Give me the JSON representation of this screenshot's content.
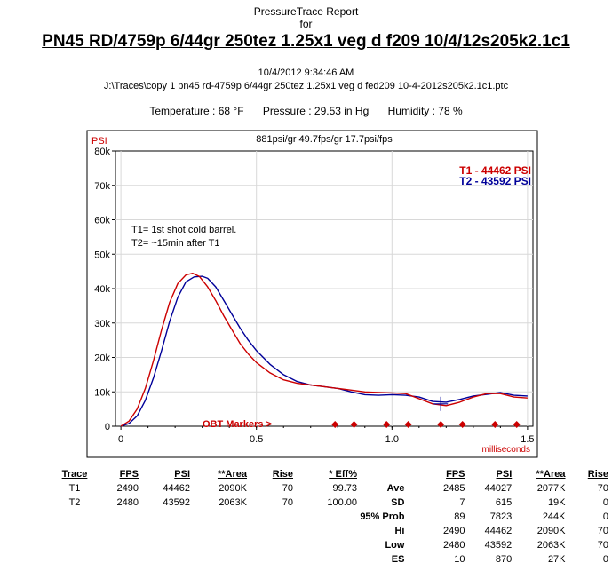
{
  "header": {
    "title": "PressureTrace Report",
    "for_label": "for",
    "main": "PN45 RD/4759p 6/44gr 250tez 1.25x1 veg d f209 10/4/12s205k2.1c1",
    "date": "10/4/2012 9:34:46 AM",
    "path": "J:\\Traces\\copy 1 pn45 rd-4759p 6/44gr 250tez 1.25x1 veg d fed209 10-4-2012s205k2.1c1.ptc"
  },
  "conditions": {
    "temperature": "Temperature : 68 °F",
    "pressure": "Pressure : 29.53 in Hg",
    "humidity": "Humidity : 78 %"
  },
  "chart_data": {
    "type": "line",
    "subtitle": "881psi/gr   49.7fps/gr   17.7psi/fps",
    "ylabel": "PSI",
    "xlabel": "milliseconds",
    "xlim": [
      -0.02,
      1.52
    ],
    "ylim": [
      0,
      80000
    ],
    "x_ticks": [
      {
        "v": 0,
        "t": "0"
      },
      {
        "v": 0.5,
        "t": "0.5"
      },
      {
        "v": 1.0,
        "t": "1.0"
      },
      {
        "v": 1.5,
        "t": "1.5"
      }
    ],
    "y_ticks": [
      {
        "v": 0,
        "t": "0"
      },
      {
        "v": 10000,
        "t": "10k"
      },
      {
        "v": 20000,
        "t": "20k"
      },
      {
        "v": 30000,
        "t": "30k"
      },
      {
        "v": 40000,
        "t": "40k"
      },
      {
        "v": 50000,
        "t": "50k"
      },
      {
        "v": 60000,
        "t": "60k"
      },
      {
        "v": 70000,
        "t": "70k"
      },
      {
        "v": 80000,
        "t": "80k"
      }
    ],
    "annotation_lines": [
      "T1= 1st shot cold barrel.",
      "T2= ~15min after T1"
    ],
    "obt_label": "OBT Markers >",
    "obt_markers": [
      0.79,
      0.86,
      0.98,
      1.06,
      1.18,
      1.26,
      1.38,
      1.46
    ],
    "legend": [
      {
        "name": "T1 -  44462 PSI",
        "color": "#cc0000"
      },
      {
        "name": "T2 -  43592 PSI",
        "color": "#000099"
      }
    ],
    "series": [
      {
        "name": "T1",
        "color": "#cc0000",
        "x": [
          0,
          0.03,
          0.06,
          0.09,
          0.12,
          0.15,
          0.18,
          0.21,
          0.24,
          0.265,
          0.29,
          0.32,
          0.35,
          0.38,
          0.41,
          0.44,
          0.47,
          0.5,
          0.55,
          0.6,
          0.65,
          0.7,
          0.75,
          0.8,
          0.85,
          0.9,
          0.95,
          1.0,
          1.05,
          1.1,
          1.15,
          1.2,
          1.25,
          1.3,
          1.35,
          1.4,
          1.45,
          1.5
        ],
        "y": [
          0,
          1500,
          5000,
          11000,
          19000,
          28000,
          36000,
          41500,
          44000,
          44462,
          43500,
          40500,
          36500,
          32000,
          28000,
          24000,
          21000,
          18500,
          15500,
          13500,
          12500,
          12000,
          11500,
          11000,
          10500,
          10000,
          9800,
          9700,
          9500,
          8000,
          6500,
          6000,
          7000,
          8500,
          9500,
          9500,
          8500,
          8200
        ]
      },
      {
        "name": "T2",
        "color": "#000099",
        "x": [
          0,
          0.03,
          0.06,
          0.09,
          0.12,
          0.15,
          0.18,
          0.21,
          0.24,
          0.27,
          0.3,
          0.32,
          0.35,
          0.38,
          0.41,
          0.44,
          0.47,
          0.5,
          0.55,
          0.6,
          0.65,
          0.7,
          0.75,
          0.8,
          0.85,
          0.9,
          0.95,
          1.0,
          1.05,
          1.1,
          1.15,
          1.2,
          1.25,
          1.3,
          1.35,
          1.4,
          1.45,
          1.5
        ],
        "y": [
          0,
          800,
          3000,
          7500,
          14000,
          22000,
          30500,
          37500,
          42000,
          43400,
          43592,
          43000,
          40500,
          36500,
          32500,
          28500,
          25000,
          22000,
          18000,
          15000,
          13000,
          12000,
          11500,
          11000,
          10000,
          9200,
          9000,
          9200,
          9000,
          8500,
          7200,
          7000,
          7800,
          8800,
          9300,
          9800,
          9000,
          8800
        ]
      }
    ]
  },
  "left_table": {
    "headers": [
      "Trace",
      "FPS",
      "PSI",
      "**Area",
      "Rise",
      "* Eff%"
    ],
    "rows": [
      [
        "T1",
        "2490",
        "44462",
        "2090K",
        "70",
        "99.73"
      ],
      [
        "T2",
        "2480",
        "43592",
        "2063K",
        "70",
        "100.00"
      ]
    ]
  },
  "stats_table": {
    "headers": [
      "",
      "FPS",
      "PSI",
      "**Area",
      "Rise"
    ],
    "rows": [
      [
        "Ave",
        "2485",
        "44027",
        "2077K",
        "70"
      ],
      [
        "SD",
        "7",
        "615",
        "19K",
        "0"
      ],
      [
        "95% Prob",
        "89",
        "7823",
        "244K",
        "0"
      ],
      [
        "Hi",
        "2490",
        "44462",
        "2090K",
        "70"
      ],
      [
        "Low",
        "2480",
        "43592",
        "2063K",
        "70"
      ],
      [
        "ES",
        "10",
        "870",
        "27K",
        "0"
      ]
    ]
  }
}
